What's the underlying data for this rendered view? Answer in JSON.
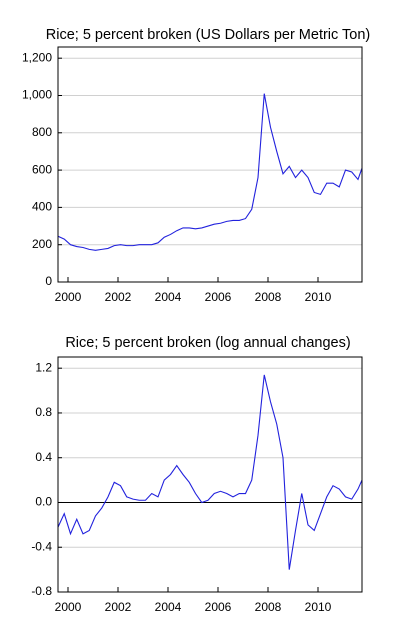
{
  "chart_data": [
    {
      "type": "line",
      "title": "Rice; 5 percent broken (US Dollars per Metric Ton)",
      "x": [
        1999.6,
        1999.85,
        2000.1,
        2000.35,
        2000.6,
        2000.85,
        2001.1,
        2001.35,
        2001.6,
        2001.85,
        2002.1,
        2002.35,
        2002.6,
        2002.85,
        2003.1,
        2003.35,
        2003.6,
        2003.85,
        2004.1,
        2004.35,
        2004.6,
        2004.85,
        2005.1,
        2005.35,
        2005.6,
        2005.85,
        2006.1,
        2006.35,
        2006.6,
        2006.85,
        2007.1,
        2007.35,
        2007.6,
        2007.85,
        2008.1,
        2008.35,
        2008.6,
        2008.85,
        2009.1,
        2009.35,
        2009.6,
        2009.85,
        2010.1,
        2010.35,
        2010.6,
        2010.85,
        2011.1,
        2011.35,
        2011.6,
        2011.76
      ],
      "values": [
        245,
        230,
        200,
        190,
        185,
        175,
        170,
        175,
        180,
        195,
        200,
        195,
        195,
        200,
        200,
        200,
        210,
        240,
        255,
        275,
        290,
        290,
        285,
        290,
        300,
        310,
        315,
        325,
        330,
        330,
        340,
        390,
        560,
        1010,
        830,
        700,
        580,
        620,
        560,
        600,
        560,
        480,
        470,
        530,
        530,
        510,
        600,
        590,
        550,
        610
      ],
      "color": "#2222dd",
      "xlim": [
        1999.6,
        2011.76
      ],
      "xticks": [
        2000,
        2002,
        2004,
        2006,
        2008,
        2010
      ],
      "ylim": [
        0,
        1260
      ],
      "yticks": [
        0,
        200,
        400,
        600,
        800,
        {
          "value": 1000,
          "label": "1,000"
        },
        {
          "value": 1200,
          "label": "1,200"
        }
      ],
      "grid": true
    },
    {
      "type": "line",
      "title": "Rice; 5 percent broken (log annual changes)",
      "x": [
        1999.6,
        1999.85,
        2000.1,
        2000.35,
        2000.6,
        2000.85,
        2001.1,
        2001.35,
        2001.6,
        2001.85,
        2002.1,
        2002.35,
        2002.6,
        2002.85,
        2003.1,
        2003.35,
        2003.6,
        2003.85,
        2004.1,
        2004.35,
        2004.6,
        2004.85,
        2005.1,
        2005.35,
        2005.6,
        2005.85,
        2006.1,
        2006.35,
        2006.6,
        2006.85,
        2007.1,
        2007.35,
        2007.6,
        2007.85,
        2008.1,
        2008.35,
        2008.6,
        2008.85,
        2009.1,
        2009.35,
        2009.6,
        2009.85,
        2010.1,
        2010.35,
        2010.6,
        2010.85,
        2011.1,
        2011.35,
        2011.6,
        2011.76
      ],
      "values": [
        -0.22,
        -0.1,
        -0.28,
        -0.15,
        -0.28,
        -0.25,
        -0.12,
        -0.05,
        0.05,
        0.18,
        0.15,
        0.05,
        0.03,
        0.02,
        0.02,
        0.08,
        0.05,
        0.2,
        0.25,
        0.33,
        0.25,
        0.18,
        0.08,
        0.0,
        0.02,
        0.08,
        0.1,
        0.08,
        0.05,
        0.08,
        0.08,
        0.2,
        0.6,
        1.14,
        0.9,
        0.7,
        0.4,
        -0.6,
        -0.25,
        0.08,
        -0.2,
        -0.25,
        -0.1,
        0.05,
        0.15,
        0.12,
        0.05,
        0.03,
        0.12,
        0.2
      ],
      "color": "#2222dd",
      "xlim": [
        1999.6,
        2011.76
      ],
      "xticks": [
        2000,
        2002,
        2004,
        2006,
        2008,
        2010
      ],
      "ylim": [
        -0.8,
        1.3
      ],
      "yticks": [
        -0.8,
        -0.4,
        {
          "value": 0,
          "label": "0.0"
        },
        0.4,
        0.8,
        1.2
      ],
      "grid": true,
      "zero_line": true
    }
  ]
}
